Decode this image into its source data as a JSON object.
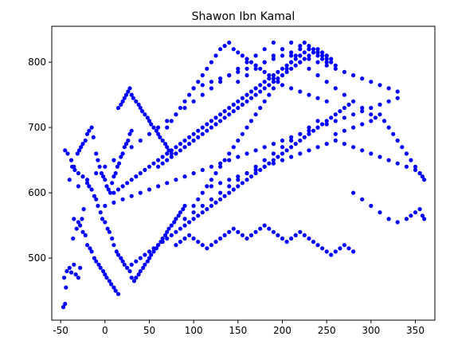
{
  "chart_data": {
    "type": "scatter",
    "title": "Shawon Ibn Kamal",
    "xlabel": "",
    "ylabel": "",
    "xlim": [
      -60,
      372
    ],
    "ylim": [
      405,
      855
    ],
    "xticks": [
      -50,
      0,
      50,
      100,
      150,
      200,
      250,
      300,
      350
    ],
    "yticks": [
      500,
      600,
      700,
      800
    ],
    "grid": false,
    "marker_color": "#0000ff",
    "note_on_points": "Dense cloud of roughly 1500 points; listed points are a representative estimate read off the figure.",
    "series": [
      {
        "name": "",
        "x": [
          -47,
          -45,
          -44,
          -46,
          -43,
          -40,
          -38,
          -35,
          -33,
          -30,
          -28,
          -36,
          -32,
          -26,
          -24,
          -40,
          -37,
          -34,
          -31,
          -29,
          -27,
          -25,
          -22,
          -20,
          -18,
          -15,
          -13,
          -10,
          -8,
          -6,
          -4,
          -2,
          0,
          2,
          4,
          6,
          8,
          10,
          12,
          14,
          16,
          18,
          20,
          22,
          24,
          26,
          28,
          30,
          -45,
          -42,
          -38,
          -35,
          -30,
          -25,
          -20,
          -18,
          -15,
          -12,
          -10,
          -8,
          -5,
          -3,
          0,
          3,
          5,
          8,
          10,
          13,
          15,
          18,
          20,
          22,
          25,
          28,
          30,
          33,
          35,
          38,
          40,
          43,
          45,
          48,
          50,
          52,
          55,
          58,
          60,
          63,
          65,
          68,
          70,
          72,
          75,
          78,
          80,
          83,
          85,
          88,
          90,
          -35,
          -30,
          -28,
          -25,
          -22,
          -20,
          -17,
          -15,
          -12,
          -10,
          -7,
          -5,
          -2,
          0,
          2,
          5,
          7,
          10,
          12,
          15,
          15,
          18,
          20,
          22,
          24,
          26,
          28,
          30,
          32,
          35,
          38,
          40,
          42,
          45,
          48,
          50,
          52,
          55,
          58,
          60,
          62,
          65,
          68,
          70,
          72,
          75,
          10,
          15,
          20,
          25,
          30,
          35,
          40,
          45,
          50,
          55,
          60,
          65,
          70,
          75,
          80,
          85,
          90,
          95,
          100,
          105,
          110,
          115,
          120,
          125,
          130,
          135,
          140,
          145,
          150,
          155,
          160,
          165,
          170,
          175,
          180,
          185,
          190,
          195,
          200,
          205,
          210,
          215,
          220,
          225,
          230,
          235,
          240,
          245,
          250,
          70,
          75,
          80,
          85,
          90,
          95,
          100,
          105,
          110,
          115,
          120,
          125,
          130,
          135,
          140,
          145,
          150,
          155,
          160,
          165,
          170,
          175,
          180,
          185,
          190,
          195,
          200,
          210,
          220,
          230,
          240,
          250,
          30,
          35,
          40,
          45,
          50,
          55,
          60,
          65,
          70,
          75,
          80,
          85,
          90,
          95,
          100,
          105,
          110,
          115,
          120,
          125,
          130,
          135,
          140,
          145,
          150,
          155,
          160,
          165,
          170,
          175,
          180,
          185,
          190,
          195,
          200,
          205,
          210,
          215,
          220,
          225,
          230,
          235,
          240,
          245,
          250,
          255,
          260,
          265,
          270,
          275,
          80,
          85,
          90,
          95,
          100,
          105,
          110,
          115,
          120,
          125,
          130,
          135,
          140,
          145,
          150,
          155,
          160,
          165,
          170,
          175,
          180,
          185,
          190,
          195,
          200,
          205,
          210,
          215,
          220,
          225,
          230,
          235,
          240,
          245,
          250,
          255,
          260,
          265,
          270,
          275,
          280,
          60,
          65,
          70,
          75,
          80,
          85,
          90,
          95,
          100,
          105,
          110,
          115,
          120,
          125,
          130,
          135,
          140,
          145,
          150,
          155,
          160,
          165,
          170,
          175,
          180,
          185,
          190,
          195,
          200,
          205,
          210,
          215,
          220,
          225,
          230,
          235,
          240,
          245,
          250,
          255,
          100,
          105,
          110,
          115,
          120,
          125,
          130,
          135,
          140,
          145,
          150,
          155,
          160,
          165,
          170,
          175,
          180,
          185,
          190,
          195,
          200,
          205,
          210,
          215,
          220,
          225,
          230,
          235,
          240,
          245,
          250,
          255,
          260,
          90,
          100,
          110,
          120,
          130,
          140,
          150,
          160,
          170,
          180,
          190,
          200,
          210,
          220,
          230,
          240,
          100,
          110,
          120,
          130,
          140,
          150,
          160,
          170,
          180,
          190,
          200,
          210,
          220,
          230,
          240,
          250,
          260,
          270,
          280,
          290,
          300,
          310,
          320,
          330,
          120,
          130,
          140,
          150,
          160,
          170,
          180,
          190,
          200,
          210,
          220,
          230,
          240,
          250,
          260,
          270,
          280,
          290,
          300,
          310,
          320,
          330,
          340,
          350,
          355,
          358,
          260,
          270,
          280,
          290,
          300,
          305,
          310,
          315,
          320,
          325,
          330,
          335,
          340,
          345,
          350,
          355,
          360,
          150,
          160,
          170,
          180,
          190,
          200,
          210,
          220,
          230,
          240,
          250,
          280,
          290,
          300,
          310,
          320,
          330,
          340,
          345,
          350,
          355,
          358,
          360,
          0,
          10,
          20,
          30,
          40,
          50,
          60,
          70,
          80,
          90,
          100,
          110,
          120,
          130,
          140,
          150,
          160,
          170,
          180,
          190,
          200,
          210,
          220,
          230,
          240,
          250,
          260,
          270,
          280,
          290,
          300,
          310,
          320,
          330,
          -30,
          -20,
          -10,
          0,
          10,
          20,
          30,
          40,
          50,
          60,
          70,
          80,
          90,
          100,
          110,
          120,
          130,
          140,
          150,
          160,
          170,
          180,
          190,
          200,
          210,
          220,
          230,
          240,
          250,
          260,
          270,
          280,
          290,
          300
        ],
        "y": [
          425,
          430,
          455,
          470,
          480,
          485,
          478,
          490,
          475,
          470,
          485,
          530,
          545,
          560,
          575,
          620,
          640,
          635,
          660,
          665,
          670,
          675,
          680,
          690,
          695,
          700,
          685,
          660,
          650,
          640,
          630,
          625,
          620,
          610,
          605,
          600,
          615,
          625,
          630,
          640,
          645,
          655,
          660,
          670,
          675,
          680,
          690,
          695,
          665,
          660,
          650,
          640,
          630,
          625,
          615,
          610,
          605,
          595,
          590,
          580,
          570,
          560,
          555,
          545,
          540,
          530,
          520,
          510,
          505,
          500,
          495,
          490,
          485,
          480,
          470,
          465,
          470,
          475,
          480,
          485,
          490,
          495,
          500,
          505,
          510,
          515,
          520,
          525,
          530,
          535,
          540,
          545,
          550,
          555,
          560,
          565,
          570,
          575,
          580,
          560,
          555,
          550,
          540,
          535,
          520,
          515,
          510,
          500,
          495,
          490,
          485,
          480,
          475,
          470,
          465,
          460,
          455,
          450,
          445,
          730,
          735,
          740,
          745,
          750,
          755,
          760,
          750,
          745,
          740,
          735,
          730,
          725,
          720,
          715,
          710,
          705,
          700,
          695,
          690,
          685,
          680,
          675,
          670,
          665,
          660,
          600,
          605,
          610,
          615,
          620,
          625,
          630,
          635,
          640,
          645,
          650,
          655,
          660,
          665,
          670,
          675,
          680,
          685,
          690,
          695,
          700,
          705,
          710,
          715,
          720,
          725,
          730,
          735,
          740,
          745,
          750,
          755,
          760,
          765,
          770,
          775,
          780,
          785,
          790,
          795,
          800,
          805,
          810,
          815,
          820,
          815,
          810,
          805,
          800,
          700,
          710,
          720,
          730,
          740,
          750,
          760,
          770,
          780,
          790,
          800,
          810,
          820,
          825,
          830,
          820,
          815,
          810,
          805,
          800,
          795,
          790,
          785,
          780,
          775,
          770,
          765,
          760,
          755,
          750,
          745,
          740,
          490,
          495,
          500,
          505,
          510,
          515,
          520,
          525,
          530,
          535,
          540,
          545,
          550,
          555,
          560,
          565,
          570,
          575,
          580,
          585,
          590,
          595,
          600,
          605,
          610,
          615,
          620,
          625,
          630,
          635,
          640,
          645,
          650,
          655,
          660,
          665,
          670,
          675,
          680,
          685,
          690,
          695,
          700,
          705,
          710,
          715,
          720,
          725,
          730,
          735,
          520,
          525,
          530,
          535,
          530,
          525,
          520,
          515,
          520,
          525,
          530,
          535,
          540,
          545,
          540,
          535,
          530,
          535,
          540,
          545,
          550,
          545,
          540,
          535,
          530,
          525,
          530,
          535,
          540,
          535,
          530,
          525,
          520,
          515,
          510,
          505,
          510,
          515,
          520,
          515,
          510,
          640,
          645,
          650,
          655,
          660,
          665,
          670,
          675,
          680,
          685,
          690,
          695,
          700,
          705,
          710,
          715,
          720,
          725,
          730,
          735,
          740,
          745,
          750,
          755,
          760,
          765,
          770,
          775,
          780,
          785,
          790,
          795,
          800,
          805,
          810,
          815,
          820,
          815,
          810,
          805,
          580,
          590,
          600,
          610,
          620,
          630,
          640,
          650,
          660,
          670,
          680,
          690,
          700,
          710,
          720,
          730,
          740,
          750,
          760,
          770,
          780,
          790,
          800,
          810,
          820,
          830,
          825,
          820,
          815,
          810,
          805,
          800,
          795,
          560,
          570,
          580,
          590,
          600,
          610,
          620,
          630,
          640,
          650,
          660,
          670,
          680,
          690,
          700,
          710,
          760,
          765,
          770,
          775,
          780,
          785,
          790,
          795,
          800,
          805,
          810,
          815,
          810,
          805,
          800,
          795,
          790,
          785,
          780,
          775,
          770,
          765,
          760,
          755,
          610,
          615,
          620,
          625,
          630,
          635,
          640,
          645,
          650,
          655,
          660,
          665,
          670,
          675,
          680,
          675,
          670,
          665,
          660,
          655,
          650,
          645,
          640,
          635,
          630,
          625,
          690,
          695,
          700,
          705,
          710,
          715,
          720,
          710,
          700,
          690,
          680,
          670,
          660,
          650,
          640,
          630,
          620,
          770,
          780,
          790,
          800,
          810,
          820,
          830,
          825,
          820,
          815,
          810,
          600,
          590,
          580,
          570,
          560,
          555,
          560,
          565,
          570,
          575,
          565,
          560,
          580,
          585,
          590,
          595,
          600,
          605,
          610,
          615,
          620,
          625,
          630,
          635,
          640,
          645,
          650,
          655,
          660,
          665,
          670,
          675,
          680,
          685,
          690,
          695,
          700,
          705,
          710,
          715,
          720,
          725,
          730,
          735,
          740,
          745,
          610,
          620,
          630,
          640,
          650,
          660,
          670,
          680,
          690,
          700,
          710,
          720,
          730,
          740,
          750,
          760,
          770,
          780,
          790,
          800,
          810,
          820,
          830,
          820,
          810,
          800,
          790,
          780,
          770,
          760,
          750,
          740,
          730,
          720
        ]
      }
    ]
  }
}
